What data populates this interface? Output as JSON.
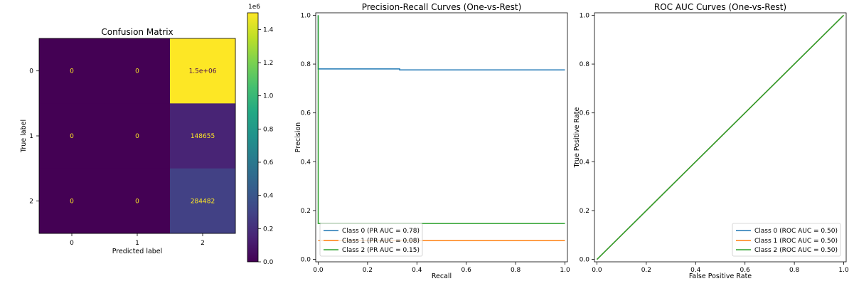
{
  "figure": {
    "background": "#ffffff"
  },
  "chart_data": [
    {
      "type": "heatmap",
      "title": "Confusion Matrix",
      "xlabel": "Predicted label",
      "ylabel": "True label",
      "x_categories": [
        "0",
        "1",
        "2"
      ],
      "y_categories": [
        "0",
        "1",
        "2"
      ],
      "values": [
        [
          0,
          0,
          1500000
        ],
        [
          0,
          0,
          148655
        ],
        [
          0,
          0,
          284482
        ]
      ],
      "cell_labels": [
        [
          "0",
          "0",
          "1.5e+06"
        ],
        [
          "0",
          "0",
          "148655"
        ],
        [
          "0",
          "0",
          "284482"
        ]
      ],
      "colormap": "viridis",
      "colorbar": {
        "min": 0,
        "max": 1500000,
        "ticks": [
          0,
          200000,
          400000,
          600000,
          800000,
          1000000,
          1200000,
          1400000
        ],
        "tick_labels": [
          "0.0",
          "0.2",
          "0.4",
          "0.6",
          "0.8",
          "1.0",
          "1.2",
          "1.4"
        ],
        "offset_label": "1e6"
      }
    },
    {
      "type": "line",
      "title": "Precision-Recall Curves (One-vs-Rest)",
      "xlabel": "Recall",
      "ylabel": "Precision",
      "xlim": [
        0,
        1
      ],
      "ylim": [
        0,
        1
      ],
      "xticks": [
        "0.0",
        "0.2",
        "0.4",
        "0.6",
        "0.8",
        "1.0"
      ],
      "yticks": [
        "0.0",
        "0.2",
        "0.4",
        "0.6",
        "0.8",
        "1.0"
      ],
      "legend_position": "lower-left",
      "series": [
        {
          "name": "Class 0 (PR AUC = 0.78)",
          "color": "#1f77b4",
          "x": [
            0,
            0,
            0.33,
            0.33,
            1.0
          ],
          "y": [
            1.0,
            0.78,
            0.78,
            0.776,
            0.776
          ]
        },
        {
          "name": "Class 1 (PR AUC = 0.08)",
          "color": "#ff7f0e",
          "x": [
            0,
            1.0
          ],
          "y": [
            0.077,
            0.077
          ]
        },
        {
          "name": "Class 2 (PR AUC = 0.15)",
          "color": "#2ca02c",
          "x": [
            0,
            0,
            1.0
          ],
          "y": [
            1.0,
            0.147,
            0.147
          ]
        }
      ]
    },
    {
      "type": "line",
      "title": "ROC AUC Curves (One-vs-Rest)",
      "xlabel": "False Positive Rate",
      "ylabel": "True Positive Rate",
      "xlim": [
        0,
        1
      ],
      "ylim": [
        0,
        1
      ],
      "xticks": [
        "0.0",
        "0.2",
        "0.4",
        "0.6",
        "0.8",
        "1.0"
      ],
      "yticks": [
        "0.0",
        "0.2",
        "0.4",
        "0.6",
        "0.8",
        "1.0"
      ],
      "legend_position": "lower-right",
      "series": [
        {
          "name": "Class 0 (ROC AUC = 0.50)",
          "color": "#1f77b4",
          "x": [
            0,
            1
          ],
          "y": [
            0,
            1
          ]
        },
        {
          "name": "Class 1 (ROC AUC = 0.50)",
          "color": "#ff7f0e",
          "x": [
            0,
            1
          ],
          "y": [
            0,
            1
          ]
        },
        {
          "name": "Class 2 (ROC AUC = 0.50)",
          "color": "#2ca02c",
          "x": [
            0,
            1
          ],
          "y": [
            0,
            1
          ]
        }
      ]
    }
  ]
}
